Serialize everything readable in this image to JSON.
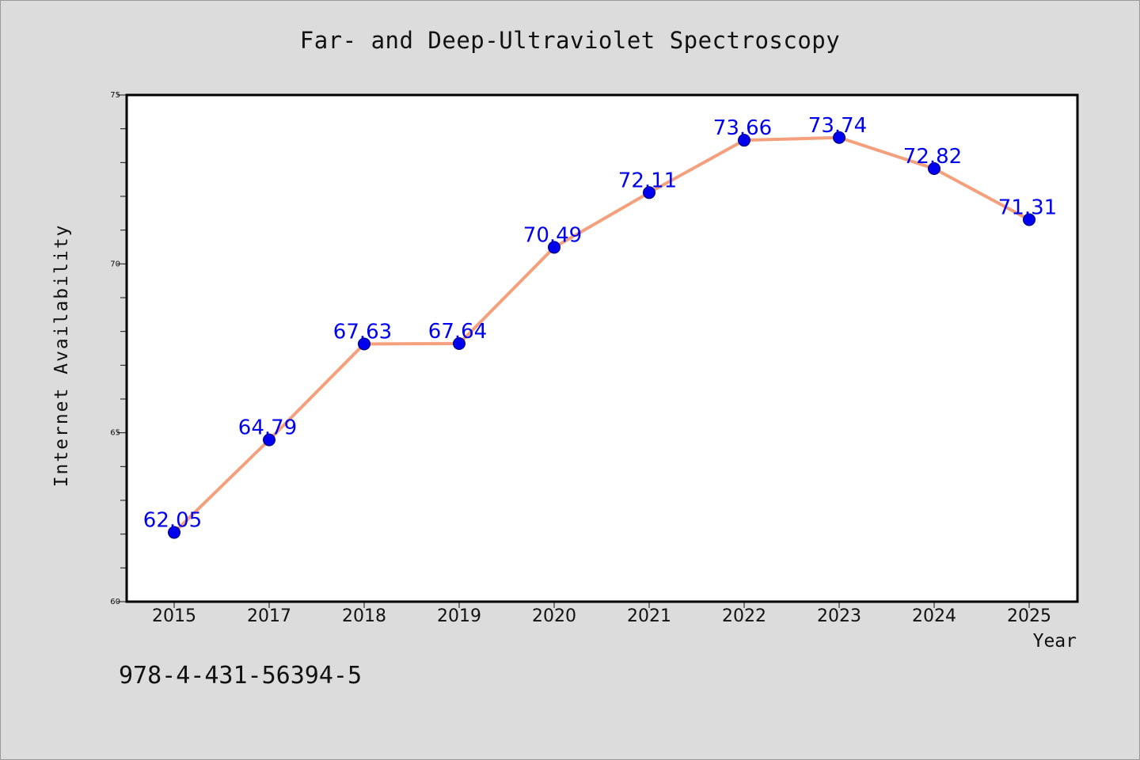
{
  "page": {
    "title": "Far- and Deep-Ultraviolet Spectroscopy",
    "isbn": "978-4-431-56394-5"
  },
  "chart_data": {
    "type": "line",
    "title": "Far- and Deep-Ultraviolet Spectroscopy",
    "xlabel": "Year",
    "ylabel": "Internet Availability",
    "categories": [
      "2015",
      "2017",
      "2018",
      "2019",
      "2020",
      "2021",
      "2022",
      "2023",
      "2024",
      "2025"
    ],
    "series": [
      {
        "values": [
          62.05,
          64.79,
          67.63,
          67.64,
          70.49,
          72.11,
          73.66,
          73.74,
          72.82,
          71.31
        ],
        "labels": [
          "62.05",
          "64.79",
          "67.63",
          "67.64",
          "70.49",
          "72.11",
          "73.66",
          "73.74",
          "72.82",
          "71.31"
        ]
      }
    ],
    "ylim": [
      60,
      75
    ],
    "yticks": [
      60,
      65,
      70,
      75
    ],
    "grid": false,
    "colors": {
      "line": "#f4a07c",
      "marker": "#0000ee",
      "data_label": "#0000ee",
      "plot_background": "#ffffff",
      "figure_background": "#dcdcdc"
    }
  }
}
